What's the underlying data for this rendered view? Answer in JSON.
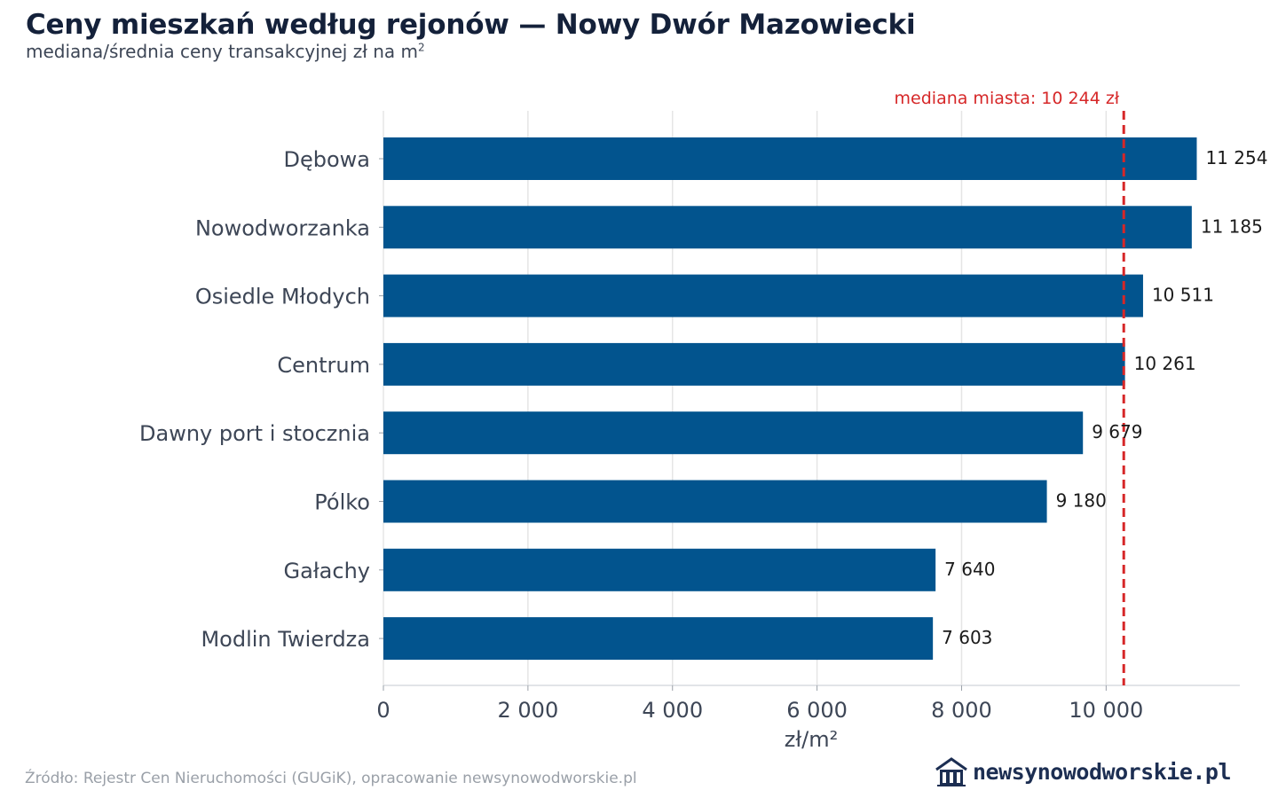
{
  "header": {
    "title": "Ceny mieszkań według rejonów — Nowy Dwór Mazowiecki",
    "subtitle": "mediana/średnia ceny transakcyjnej zł na m",
    "subtitle_sup": "2"
  },
  "chart_data": {
    "type": "bar",
    "orientation": "horizontal",
    "categories": [
      "Dębowa",
      "Nowodworzanka",
      "Osiedle Młodych",
      "Centrum",
      "Dawny port i stocznia",
      "Pólko",
      "Gałachy",
      "Modlin Twierdza"
    ],
    "values": [
      11254,
      11185,
      10511,
      10261,
      9679,
      9180,
      7640,
      7603
    ],
    "value_labels": [
      "11 254",
      "11 185",
      "10 511",
      "10 261",
      "9 679",
      "9 180",
      "7 640",
      "7 603"
    ],
    "xlabel": "zł/m²",
    "xticks": [
      0,
      2000,
      4000,
      6000,
      8000,
      10000
    ],
    "xtick_labels": [
      "0",
      "2 000",
      "4 000",
      "6 000",
      "8 000",
      "10 000"
    ],
    "xlim": [
      0,
      11850
    ],
    "reference_line": {
      "value": 10244,
      "label": "mediana miasta: 10 244 zł"
    },
    "grid": "vertical",
    "colors": {
      "bar": "#02548e",
      "reference": "#d62728",
      "grid": "#e5e5e5",
      "axis": "#d8dbe0"
    }
  },
  "footer": {
    "source": "Źródło: Rejestr Cen Nieruchomości (GUGiK), opracowanie newsynowodworskie.pl",
    "logo_text": "newsynowodworskie.pl",
    "logo_icon": "house-icon"
  }
}
